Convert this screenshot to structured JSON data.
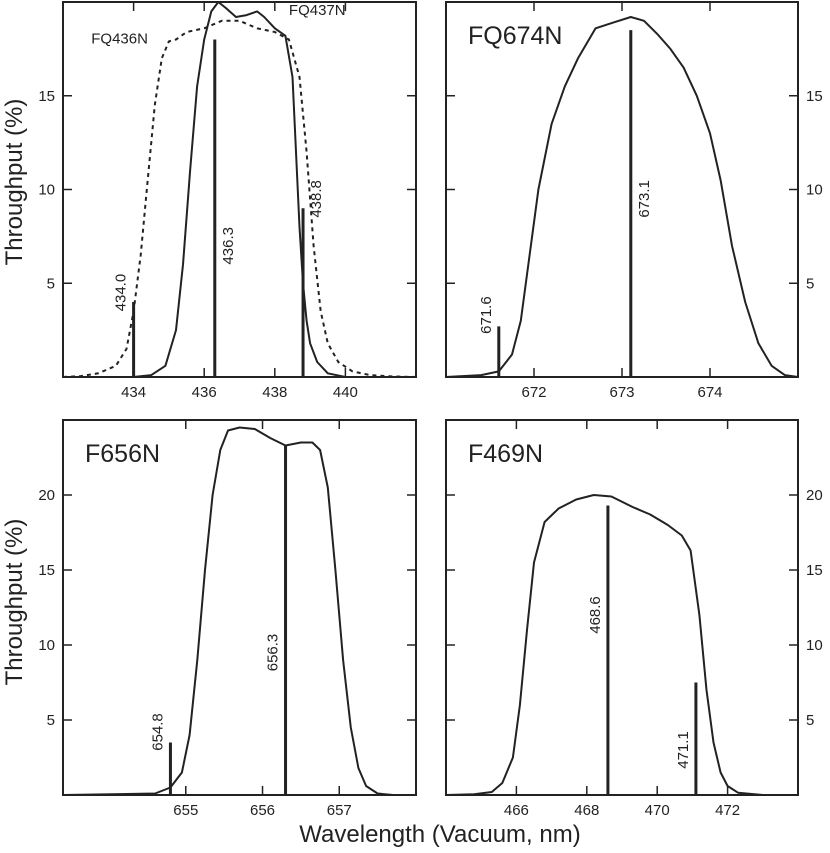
{
  "figure": {
    "xlabel": "Wavelength (Vacuum, nm)",
    "ylabel": "Throughput (%)"
  },
  "chart_data": [
    {
      "type": "line",
      "title": "",
      "xlabel": "",
      "ylabel": "Throughput (%)",
      "xlim": [
        432.0,
        442.0
      ],
      "ylim": [
        0,
        20
      ],
      "xticks": [
        434,
        436,
        438,
        440
      ],
      "yticks": [
        5,
        10,
        15
      ],
      "ytick_side": "left",
      "series": [
        {
          "name": "FQ436N",
          "style": "dashed",
          "x": [
            432.0,
            432.5,
            433.0,
            433.5,
            433.8,
            434.0,
            434.2,
            434.4,
            434.6,
            434.8,
            435.0,
            435.2,
            435.5,
            436.0,
            436.5,
            437.0,
            437.5,
            438.0,
            438.4,
            438.7,
            438.9,
            439.1,
            439.3,
            439.5,
            439.8,
            440.2,
            440.7,
            441.3,
            442.0
          ],
          "y": [
            0.0,
            0.05,
            0.2,
            0.6,
            1.5,
            3.5,
            6.5,
            10.5,
            14.5,
            17.0,
            17.9,
            18.0,
            18.4,
            18.6,
            19.0,
            19.0,
            18.6,
            18.4,
            18.0,
            16.0,
            12.0,
            7.0,
            3.5,
            1.8,
            0.8,
            0.3,
            0.1,
            0.03,
            0.0
          ]
        },
        {
          "name": "FQ437N",
          "style": "solid",
          "x": [
            432.0,
            434.0,
            434.5,
            434.9,
            435.2,
            435.4,
            435.6,
            435.8,
            436.0,
            436.2,
            436.4,
            436.6,
            436.9,
            437.2,
            437.5,
            437.7,
            438.0,
            438.3,
            438.5,
            438.6,
            438.7,
            438.8,
            438.9,
            439.0,
            439.2,
            439.5,
            440.0,
            442.0
          ],
          "y": [
            0.0,
            0.0,
            0.1,
            0.6,
            2.5,
            6.0,
            11.0,
            15.5,
            18.0,
            19.5,
            20.0,
            19.7,
            19.2,
            19.3,
            19.5,
            19.2,
            18.6,
            18.2,
            16.0,
            12.0,
            8.0,
            5.0,
            3.0,
            1.8,
            0.8,
            0.2,
            0.0,
            0.0
          ]
        }
      ],
      "lines": [
        {
          "x": 434.0,
          "height": 4.0,
          "label": "434.0",
          "label_y": 4.5,
          "label_side": "left"
        },
        {
          "x": 436.3,
          "height": 18.0,
          "label": "436.3",
          "label_y": 7.0,
          "label_side": "right"
        },
        {
          "x": 438.8,
          "height": 9.0,
          "label": "438.8",
          "label_y": 9.5,
          "label_side": "right"
        }
      ],
      "annotations": [
        {
          "text": "FQ436N",
          "x": 432.8,
          "y": 17.8
        },
        {
          "text": "FQ437N",
          "x": 438.4,
          "y": 19.3
        }
      ]
    },
    {
      "type": "line",
      "title": "FQ674N",
      "xlabel": "",
      "ylabel": "",
      "xlim": [
        671.0,
        675.0
      ],
      "ylim": [
        0,
        20
      ],
      "xticks": [
        672,
        673,
        674
      ],
      "yticks": [
        5,
        10,
        15
      ],
      "ytick_side": "right",
      "series": [
        {
          "name": "",
          "style": "solid",
          "x": [
            671.0,
            671.4,
            671.6,
            671.75,
            671.85,
            671.95,
            672.05,
            672.2,
            672.35,
            672.5,
            672.7,
            672.9,
            673.1,
            673.25,
            673.4,
            673.55,
            673.7,
            673.85,
            674.0,
            674.12,
            674.25,
            674.4,
            674.55,
            674.7,
            674.85,
            675.0
          ],
          "y": [
            0.0,
            0.1,
            0.3,
            1.2,
            3.0,
            6.5,
            10.0,
            13.5,
            15.5,
            17.0,
            18.6,
            18.9,
            19.2,
            19.0,
            18.3,
            17.5,
            16.5,
            15.0,
            13.0,
            10.5,
            7.0,
            4.0,
            1.8,
            0.6,
            0.1,
            0.0
          ]
        }
      ],
      "lines": [
        {
          "x": 671.6,
          "height": 2.7,
          "label": "671.6",
          "label_y": 3.3,
          "label_side": "left"
        },
        {
          "x": 673.1,
          "height": 18.5,
          "label": "673.1",
          "label_y": 9.5,
          "label_side": "right"
        }
      ],
      "annotations": []
    },
    {
      "type": "line",
      "title": "F656N",
      "xlabel": "",
      "ylabel": "Throughput (%)",
      "xlim": [
        653.4,
        658.0
      ],
      "ylim": [
        0,
        25
      ],
      "xticks": [
        655,
        656,
        657
      ],
      "yticks": [
        5,
        10,
        15,
        20
      ],
      "ytick_side": "left",
      "series": [
        {
          "name": "",
          "style": "solid",
          "x": [
            653.4,
            654.6,
            654.8,
            654.95,
            655.05,
            655.15,
            655.25,
            655.35,
            655.45,
            655.55,
            655.7,
            655.9,
            656.1,
            656.3,
            656.5,
            656.65,
            656.75,
            656.85,
            656.95,
            657.05,
            657.15,
            657.25,
            657.35,
            657.5,
            657.7,
            658.0
          ],
          "y": [
            0.0,
            0.1,
            0.5,
            1.5,
            4.0,
            9.0,
            15.0,
            20.0,
            23.0,
            24.3,
            24.5,
            24.4,
            23.8,
            23.3,
            23.5,
            23.5,
            23.0,
            20.5,
            15.0,
            9.0,
            4.5,
            1.8,
            0.6,
            0.1,
            0.0,
            0.0
          ]
        }
      ],
      "lines": [
        {
          "x": 654.8,
          "height": 3.5,
          "label": "654.8",
          "label_y": 4.2,
          "label_side": "left"
        },
        {
          "x": 656.3,
          "height": 23.3,
          "label": "656.3",
          "label_y": 9.5,
          "label_side": "left"
        }
      ],
      "annotations": []
    },
    {
      "type": "line",
      "title": "F469N",
      "xlabel": "",
      "ylabel": "",
      "xlim": [
        464.0,
        474.0
      ],
      "ylim": [
        0,
        25
      ],
      "xticks": [
        466,
        468,
        470,
        472
      ],
      "yticks": [
        5,
        10,
        15,
        20
      ],
      "ytick_side": "right",
      "series": [
        {
          "name": "",
          "style": "solid",
          "x": [
            464.0,
            464.8,
            465.3,
            465.6,
            465.9,
            466.1,
            466.3,
            466.5,
            466.8,
            467.2,
            467.7,
            468.2,
            468.7,
            469.3,
            469.8,
            470.3,
            470.7,
            470.95,
            471.2,
            471.4,
            471.6,
            471.8,
            472.0,
            472.3,
            473.0,
            474.0
          ],
          "y": [
            0.0,
            0.05,
            0.2,
            0.8,
            2.5,
            6.0,
            11.0,
            15.5,
            18.2,
            19.1,
            19.7,
            20.0,
            19.9,
            19.2,
            18.7,
            18.0,
            17.3,
            16.3,
            12.0,
            7.0,
            3.5,
            1.5,
            0.6,
            0.15,
            0.0,
            0.0
          ]
        }
      ],
      "lines": [
        {
          "x": 468.6,
          "height": 19.3,
          "label": "468.6",
          "label_y": 12.0,
          "label_side": "left"
        },
        {
          "x": 471.1,
          "height": 7.5,
          "label": "471.1",
          "label_y": 3.0,
          "label_side": "left"
        }
      ],
      "annotations": []
    }
  ]
}
